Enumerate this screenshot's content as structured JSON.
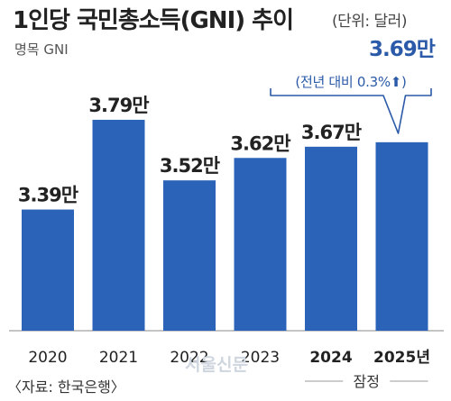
{
  "header": {
    "title": "1인당 국민총소득(GNI) 추이",
    "unit": "(단위: 달러)",
    "subtitle": "명목 GNI"
  },
  "footer": {
    "source": "〈자료: 한국은행〉",
    "watermark": "서울신문"
  },
  "chart_data": {
    "type": "bar",
    "categories": [
      "2020",
      "2021",
      "2022",
      "2023",
      "2024",
      "2025년"
    ],
    "values": [
      3.39,
      3.79,
      3.52,
      3.62,
      3.67,
      3.69
    ],
    "value_labels": [
      "3.39만",
      "3.79만",
      "3.52만",
      "3.62만",
      "3.67만",
      "3.69만"
    ],
    "bold_categories": [
      false,
      false,
      false,
      false,
      true,
      true
    ],
    "callout": {
      "text": "(전년 대비 0.3%⬆)",
      "target_index": 5
    },
    "bracket": {
      "label": "잠정",
      "from_index": 4,
      "to_index": 5
    },
    "bar_color": "#2b63b9",
    "highlight_label_color": "#2b5aa8",
    "ylim": [
      2.85,
      3.85
    ]
  }
}
